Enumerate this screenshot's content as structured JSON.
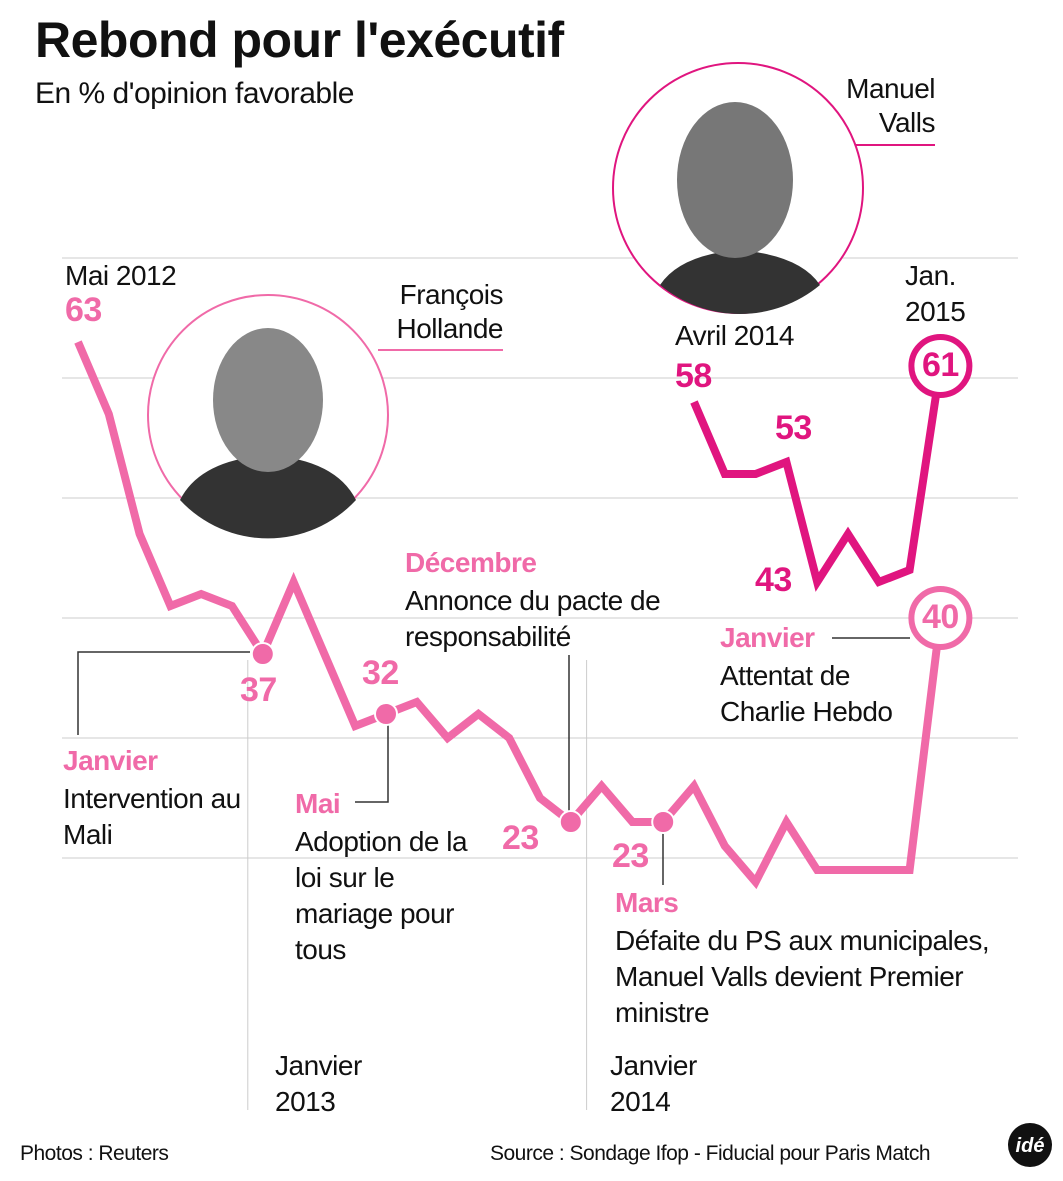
{
  "title": "Rebond pour l'exécutif",
  "subtitle": "En % d'opinion favorable",
  "chart_data": {
    "type": "line",
    "categories": [
      "Mai 2012",
      null,
      null,
      null,
      null,
      null,
      "Janvier 2013",
      null,
      null,
      null,
      null,
      null,
      null,
      null,
      null,
      null,
      null,
      "Janvier 2014",
      null,
      null,
      "Avril 2014",
      null,
      null,
      null,
      null,
      null,
      null,
      null,
      "Jan. 2015"
    ],
    "series": [
      {
        "name": "François Hollande",
        "color": "#f06aa8",
        "values": [
          63,
          57,
          47,
          41,
          42,
          41,
          37,
          43,
          37,
          31,
          32,
          33,
          30,
          32,
          30,
          25,
          23,
          26,
          23,
          23,
          26,
          21,
          18,
          23,
          19,
          19,
          19,
          19,
          40
        ]
      },
      {
        "name": "Manuel Valls",
        "color": "#e0157f",
        "values": [
          null,
          null,
          null,
          null,
          null,
          null,
          null,
          null,
          null,
          null,
          null,
          null,
          null,
          null,
          null,
          null,
          null,
          null,
          null,
          null,
          58,
          52,
          52,
          53,
          43,
          47,
          43,
          44,
          61
        ]
      }
    ],
    "ylim": [
      0,
      70
    ],
    "yticks": [
      20,
      30,
      40,
      50,
      60,
      70
    ],
    "grid": true,
    "annotations": [
      {
        "title": "Janvier",
        "text": "Intervention au Mali"
      },
      {
        "title": "Mai",
        "text": "Adoption de la loi sur le mariage pour tous"
      },
      {
        "title": "Décembre",
        "text": "Annonce du pacte de responsabilité"
      },
      {
        "title": "Mars",
        "text": "Défaite du PS aux municipales, Manuel Valls devient Premier ministre"
      },
      {
        "title": "Janvier",
        "text": "Attentat de Charlie Hebdo"
      }
    ]
  },
  "footer": {
    "photos": "Photos : Reuters",
    "source": "Source : Sondage Ifop - Fiducial pour Paris Match",
    "logo": "idé"
  }
}
